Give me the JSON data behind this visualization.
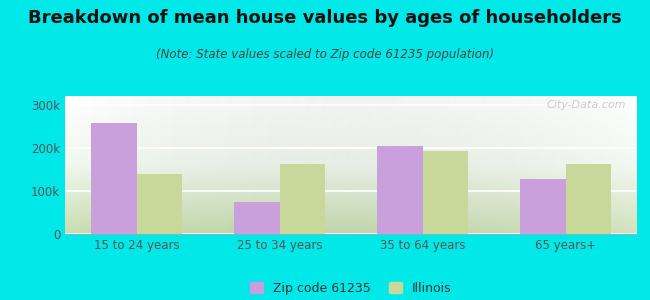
{
  "title": "Breakdown of mean house values by ages of householders",
  "subtitle": "(Note: State values scaled to Zip code 61235 population)",
  "categories": [
    "15 to 24 years",
    "25 to 34 years",
    "35 to 64 years",
    "65 years+"
  ],
  "zip_values": [
    258000,
    75000,
    204000,
    127000
  ],
  "state_values": [
    140000,
    163000,
    193000,
    163000
  ],
  "zip_color": "#c9a0dc",
  "state_color": "#c8d89a",
  "background_outer": "#00e8e8",
  "ylim": [
    0,
    320000
  ],
  "yticks": [
    0,
    100000,
    200000,
    300000
  ],
  "ytick_labels": [
    "0",
    "100k",
    "200k",
    "300k"
  ],
  "bar_width": 0.32,
  "legend_zip": "Zip code 61235",
  "legend_state": "Illinois",
  "watermark": "City-Data.com",
  "title_fontsize": 13,
  "subtitle_fontsize": 8.5,
  "tick_fontsize": 8.5
}
